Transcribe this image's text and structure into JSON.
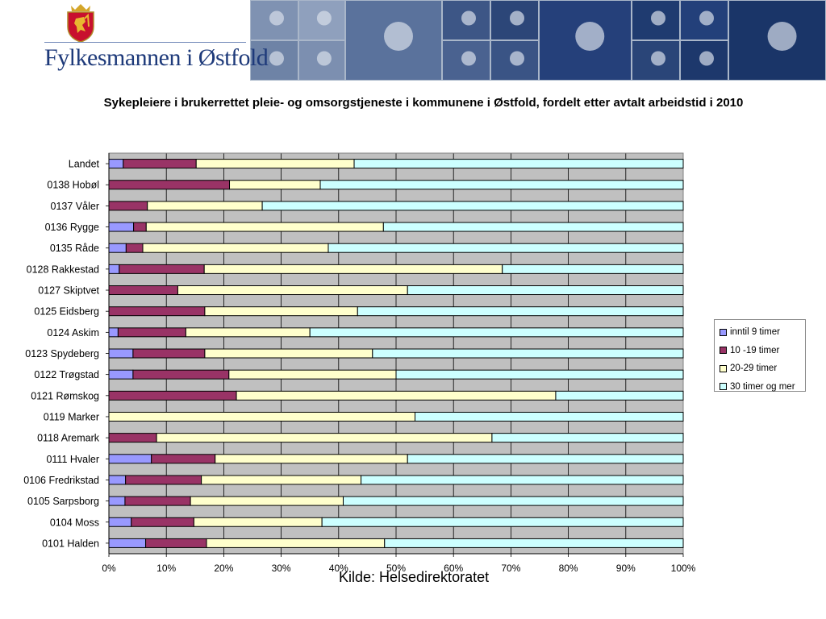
{
  "header": {
    "organization": "Fylkesmannen i Østfold",
    "logo_icon": "coat-of-arms-icon"
  },
  "chart_data": {
    "type": "bar",
    "orientation": "horizontal",
    "stacked": "percent",
    "title": "Sykepleiere i brukerrettet pleie- og omsorgstjeneste i kommunene i Østfold, fordelt etter avtalt arbeidstid i 2010",
    "xlabel": "",
    "ylabel": "",
    "xlim": [
      0,
      100
    ],
    "x_ticks": [
      "0%",
      "10%",
      "20%",
      "30%",
      "40%",
      "50%",
      "60%",
      "70%",
      "80%",
      "90%",
      "100%"
    ],
    "grid": true,
    "legend_position": "right",
    "categories": [
      "Landet",
      "0138 Hobøl",
      "0137 Våler",
      "0136 Rygge",
      "0135 Råde",
      "0128 Rakkestad",
      "0127 Skiptvet",
      "0125 Eidsberg",
      "0124 Askim",
      "0123 Spydeberg",
      "0122 Trøgstad",
      "0121 Rømskog",
      "0119 Marker",
      "0118 Aremark",
      "0111 Hvaler",
      "0106 Fredrikstad",
      "0105 Sarpsborg",
      "0104 Moss",
      "0101 Halden"
    ],
    "series": [
      {
        "name": "inntil 9 timer",
        "color": "#9999ff",
        "values": [
          2.5,
          0,
          0,
          4.3,
          3.0,
          1.8,
          0,
          0,
          1.6,
          4.2,
          4.2,
          0,
          0,
          0,
          7.4,
          2.9,
          2.8,
          3.9,
          6.4
        ]
      },
      {
        "name": "10 -19 timer",
        "color": "#993366",
        "values": [
          12.7,
          21.0,
          6.7,
          2.2,
          2.9,
          14.8,
          12.0,
          16.7,
          11.8,
          12.5,
          16.7,
          22.2,
          0,
          8.3,
          11.1,
          13.2,
          11.4,
          10.9,
          10.6
        ]
      },
      {
        "name": "20-29 timer",
        "color": "#ffffcc",
        "values": [
          27.5,
          15.8,
          20.0,
          41.3,
          32.3,
          51.9,
          40.0,
          26.6,
          21.6,
          29.2,
          29.1,
          55.6,
          53.3,
          58.4,
          33.5,
          27.8,
          26.6,
          22.3,
          31.0
        ]
      },
      {
        "name": "30 timer og mer",
        "color": "#ccffff",
        "values": [
          57.3,
          63.2,
          73.3,
          52.2,
          61.8,
          31.5,
          48.0,
          56.7,
          65.0,
          54.1,
          50.0,
          22.2,
          46.7,
          33.3,
          48.0,
          56.1,
          59.2,
          62.9,
          52.0
        ]
      }
    ]
  },
  "source": "Kilde: Helsedirektoratet"
}
